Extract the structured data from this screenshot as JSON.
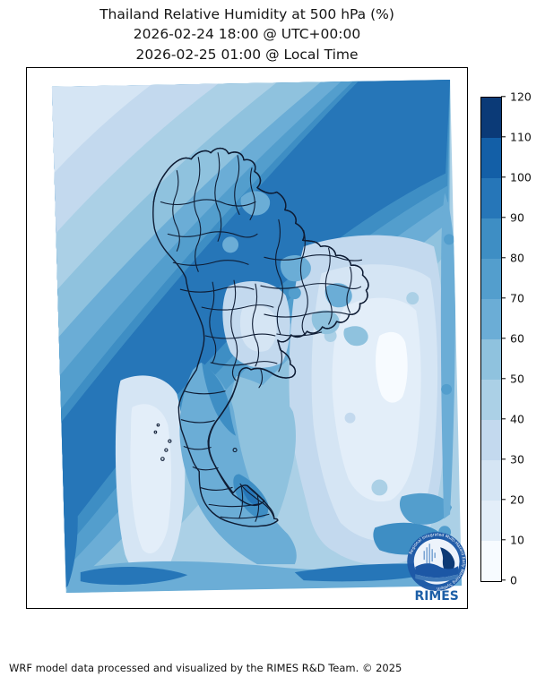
{
  "title": {
    "line1": "Thailand Relative Humidity at 500 hPa (%)",
    "line2": "2026-02-24 18:00 @ UTC+00:00",
    "line3": "2026-02-25 01:00 @ Local Time"
  },
  "caption": "WRF model data processed and visualized by the RIMES R&D Team. © 2025",
  "colorbar": {
    "min": 0,
    "max": 120,
    "ticks": [
      0,
      10,
      20,
      30,
      40,
      50,
      60,
      70,
      80,
      90,
      100,
      110,
      120
    ]
  },
  "colormap": {
    "name": "Blues (discrete, 12 bands)",
    "levels": [
      {
        "range": "0–10",
        "color": "#f7fbff"
      },
      {
        "range": "10–20",
        "color": "#e3eef9"
      },
      {
        "range": "20–30",
        "color": "#d5e5f4"
      },
      {
        "range": "30–40",
        "color": "#c3d9ee"
      },
      {
        "range": "40–50",
        "color": "#abd0e6"
      },
      {
        "range": "50–60",
        "color": "#8fc2de"
      },
      {
        "range": "60–70",
        "color": "#6badd6"
      },
      {
        "range": "70–80",
        "color": "#539ecd"
      },
      {
        "range": "80–90",
        "color": "#3e8ec4"
      },
      {
        "range": "90–100",
        "color": "#2676b8"
      },
      {
        "range": "100–110",
        "color": "#135fa7"
      },
      {
        "range": "110–120",
        "color": "#0b3a77"
      }
    ]
  },
  "logo": {
    "name": "RIMES",
    "ring_text": "Regional Integrated Multi-Hazard Early Warning System",
    "accent_color": "#1d5fa7"
  },
  "chart_data": {
    "type": "filled_contour_map",
    "variable": "Relative Humidity",
    "pressure_level": "500 hPa",
    "units": "%",
    "region": "Thailand",
    "valid_time_utc": "2026-02-24 18:00 @ UTC+00:00",
    "valid_time_local": "2026-02-25 01:00 @ Local Time",
    "colorbar_range": [
      0,
      120
    ],
    "contour_interval": 10,
    "contour_levels": [
      0,
      10,
      20,
      30,
      40,
      50,
      60,
      70,
      80,
      90,
      100,
      110,
      120
    ],
    "legend_position": "right",
    "notable_features": [
      "broad high-humidity (90-100%) band running diagonally from southwest to northeast across the upper-left of the domain and along the top edge",
      "dry (0-20%) wedge over the central Gulf / east of the peninsula",
      "light (20-40%) vertical dry strip in the lower-left quadrant",
      "moist (70-100%) patches along the bottom edge and bottom-right corner",
      "province boundaries of Thailand overlaid in dark navy"
    ]
  }
}
